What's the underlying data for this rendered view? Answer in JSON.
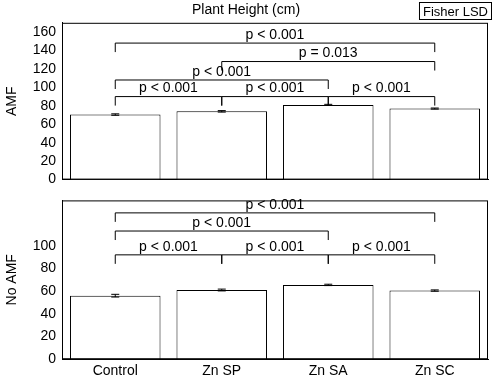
{
  "chart_data": [
    {
      "type": "bar",
      "title": "Plant Height (cm)",
      "annotations": [
        "Fisher LSD"
      ],
      "y_label": "AMF",
      "categories": [
        "Control",
        "Zn SP",
        "Zn SA",
        "Zn SC"
      ],
      "values": [
        70.5,
        74,
        81,
        77
      ],
      "errors": [
        0.8,
        0.8,
        0.6,
        0.6
      ],
      "color": "#ffffff",
      "ylim": [
        0,
        170
      ],
      "yticks": [
        0,
        20,
        40,
        60,
        80,
        100,
        120,
        140,
        160
      ],
      "grid": false,
      "tick_labels": "y",
      "brackets": [
        {
          "from": "Control",
          "to": "Zn SP",
          "y": 90,
          "label": "p < 0.001"
        },
        {
          "from": "Zn SP",
          "to": "Zn SA",
          "y": 90,
          "label": "p < 0.001"
        },
        {
          "from": "Zn SA",
          "to": "Zn SC",
          "y": 90,
          "label": "p < 0.001"
        },
        {
          "from": "Control",
          "to": "Zn SA",
          "y": 108,
          "label": "p < 0.001"
        },
        {
          "from": "Zn SP",
          "to": "Zn SC",
          "y": 128,
          "label": "p = 0.013"
        },
        {
          "from": "Control",
          "to": "Zn SC",
          "y": 148,
          "label": "p < 0.001"
        }
      ]
    },
    {
      "type": "bar",
      "y_label": "No AMF",
      "categories": [
        "Control",
        "Zn SP",
        "Zn SA",
        "Zn SC"
      ],
      "values": [
        56,
        61,
        65.5,
        60.5
      ],
      "errors": [
        1.2,
        0.8,
        0.6,
        0.6
      ],
      "color": "#ffffff",
      "ylim": [
        0,
        140
      ],
      "yticks": [
        0,
        20,
        40,
        60,
        80,
        100
      ],
      "grid": false,
      "brackets": [
        {
          "from": "Control",
          "to": "Zn SP",
          "y": 92,
          "label": "p < 0.001"
        },
        {
          "from": "Zn SP",
          "to": "Zn SA",
          "y": 92,
          "label": "p < 0.001"
        },
        {
          "from": "Zn SA",
          "to": "Zn SC",
          "y": 92,
          "label": "p < 0.001"
        },
        {
          "from": "Control",
          "to": "Zn SA",
          "y": 113,
          "label": "p < 0.001"
        },
        {
          "from": "Control",
          "to": "Zn SC",
          "y": 129,
          "label": "p < 0.001"
        }
      ]
    }
  ]
}
